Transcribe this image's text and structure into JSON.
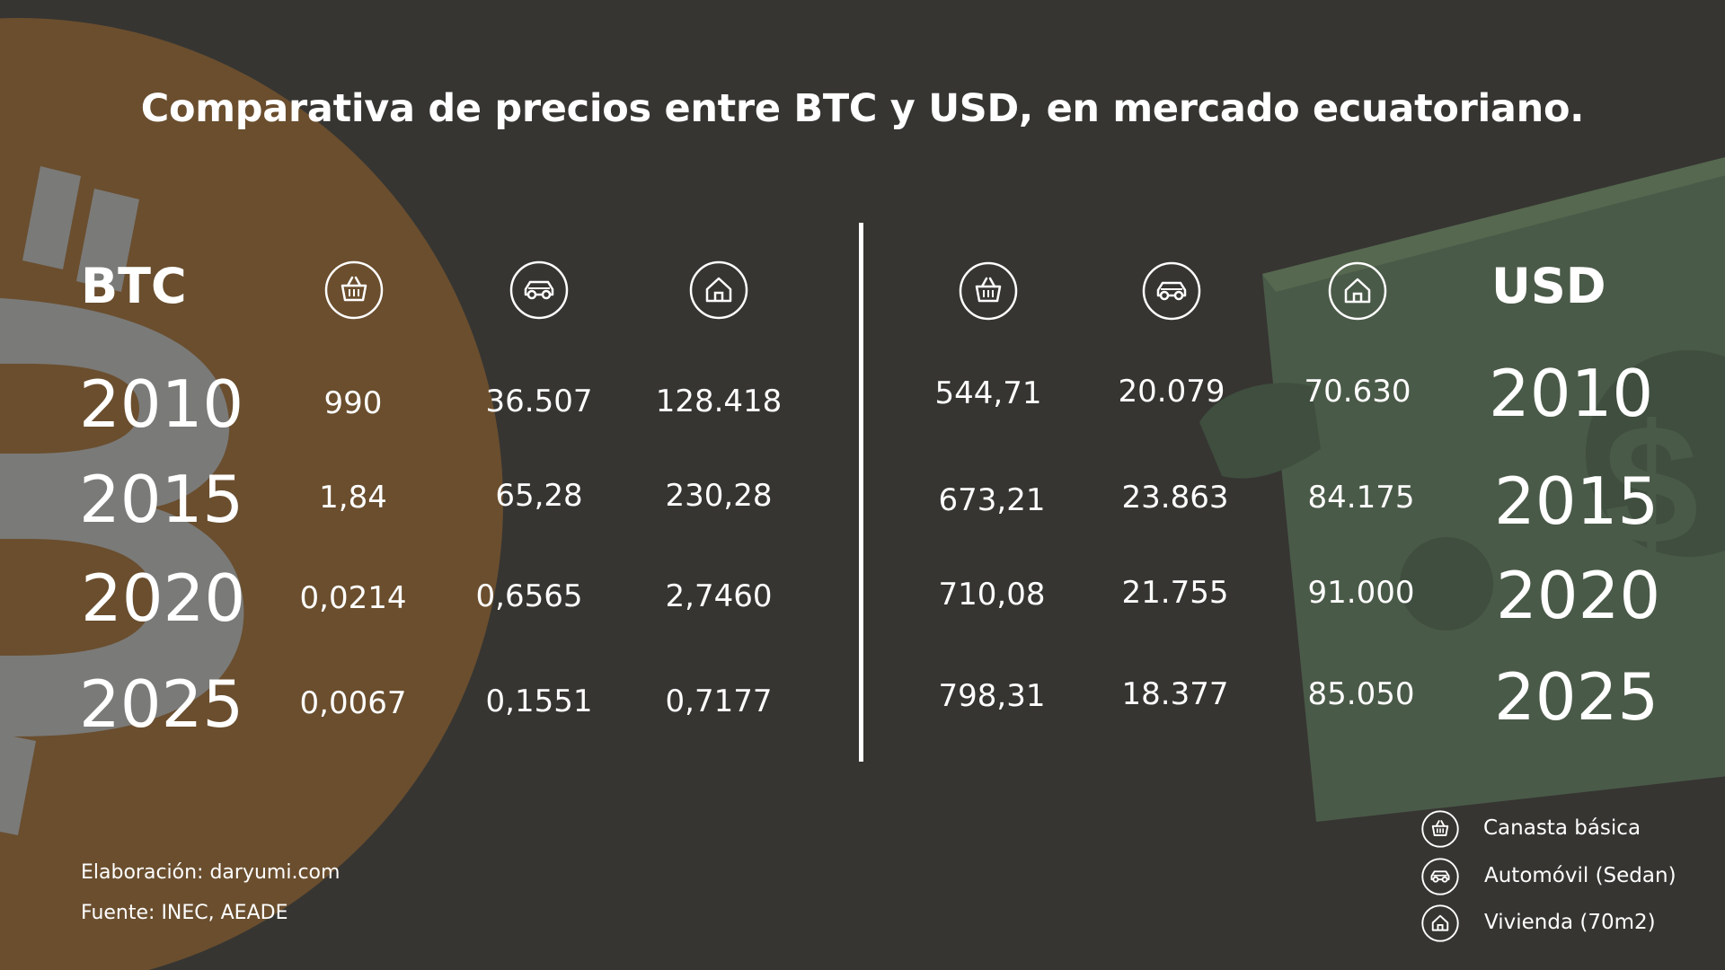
{
  "title": "Comparativa de precios entre BTC y USD, en mercado ecuatoriano.",
  "btc": {
    "header": "BTC",
    "icons": [
      "basket-icon",
      "car-icon",
      "house-icon"
    ],
    "rows": [
      {
        "year": "2010",
        "values": [
          "990",
          "36.507",
          "128.418"
        ]
      },
      {
        "year": "2015",
        "values": [
          "1,84",
          "65,28",
          "230,28"
        ]
      },
      {
        "year": "2020",
        "values": [
          "0,0214",
          "0,6565",
          "2,7460"
        ]
      },
      {
        "year": "2025",
        "values": [
          "0,0067",
          "0,1551",
          "0,7177"
        ]
      }
    ]
  },
  "usd": {
    "header": "USD",
    "icons": [
      "basket-icon",
      "car-icon",
      "house-icon"
    ],
    "rows": [
      {
        "year": "2010",
        "values": [
          "544,71",
          "20.079",
          "70.630"
        ]
      },
      {
        "year": "2015",
        "values": [
          "673,21",
          "23.863",
          "84.175"
        ]
      },
      {
        "year": "2020",
        "values": [
          "710,08",
          "21.755",
          "91.000"
        ]
      },
      {
        "year": "2025",
        "values": [
          "798,31",
          "18.377",
          "85.050"
        ]
      }
    ]
  },
  "legend": [
    {
      "icon": "basket-icon",
      "label": "Canasta básica"
    },
    {
      "icon": "car-icon",
      "label": "Automóvil (Sedan)"
    },
    {
      "icon": "house-icon",
      "label": "Vivienda (70m2)"
    }
  ],
  "footer": {
    "credit": "Elaboración: daryumi.com",
    "source": "Fuente: INEC, AEADE"
  },
  "colors": {
    "background": "#363532",
    "bitcoin_circle": "#6a4e2e",
    "bitcoin_symbol": "#7a7a78",
    "dollar_bill": "#4a5a48",
    "text": "#ffffff"
  }
}
